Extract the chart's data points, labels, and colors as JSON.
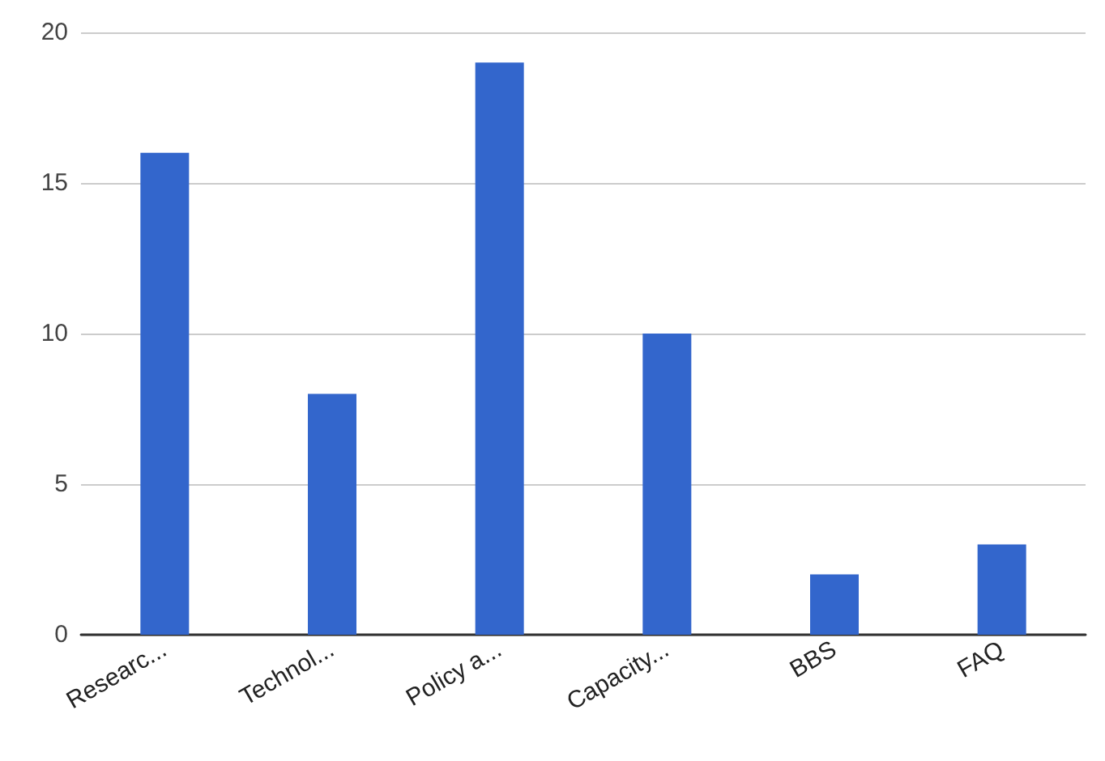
{
  "chart_data": {
    "type": "bar",
    "categories": [
      "Researc...",
      "Technol...",
      "Policy a...",
      "Capacity...",
      "BBS",
      "FAQ"
    ],
    "values": [
      16,
      8,
      19,
      10,
      2,
      3
    ],
    "color": "#3366cc",
    "ylim": [
      0,
      20
    ],
    "yticks": [
      0,
      5,
      10,
      15,
      20
    ],
    "grid": "y"
  }
}
